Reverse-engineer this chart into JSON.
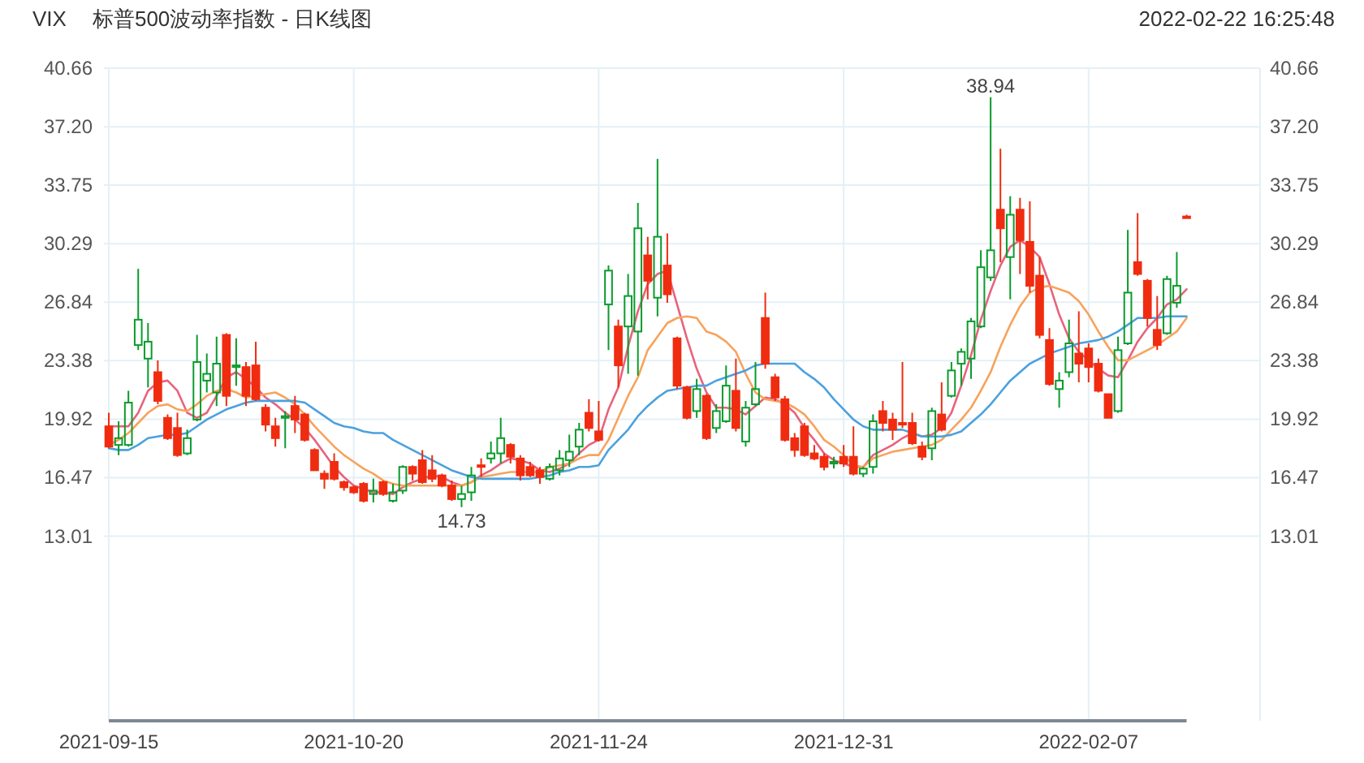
{
  "chart_data": {
    "type": "candlestick",
    "title": "VIX",
    "subtitle": "标普500波动率指数 - 日K线图",
    "annotations": [
      "2022-02-22 16:25:48",
      {
        "text": "38.94",
        "y": 38.94
      },
      {
        "text": "14.73",
        "y": 14.73
      }
    ],
    "categories": [
      "2021-09-15",
      null,
      null,
      null,
      null,
      null,
      null,
      null,
      null,
      null,
      null,
      null,
      null,
      null,
      null,
      null,
      null,
      null,
      null,
      null,
      null,
      null,
      null,
      null,
      null,
      "2021-10-20",
      null,
      null,
      null,
      null,
      null,
      null,
      null,
      null,
      null,
      null,
      null,
      null,
      null,
      null,
      null,
      null,
      null,
      null,
      null,
      null,
      null,
      null,
      null,
      null,
      "2021-11-24",
      null,
      null,
      null,
      null,
      null,
      null,
      null,
      null,
      null,
      null,
      null,
      null,
      null,
      null,
      null,
      null,
      null,
      null,
      null,
      null,
      null,
      null,
      null,
      null,
      "2021-12-31",
      null,
      null,
      null,
      null,
      null,
      null,
      null,
      null,
      null,
      null,
      null,
      null,
      null,
      null,
      null,
      null,
      null,
      null,
      null,
      null,
      null,
      null,
      null,
      null,
      "2022-02-07",
      null,
      null,
      null,
      null,
      null,
      null,
      null,
      null,
      null,
      null
    ],
    "ohlc": [
      [
        19.5,
        20.3,
        18.2,
        18.3
      ],
      [
        18.4,
        19.8,
        17.8,
        18.8
      ],
      [
        18.4,
        21.6,
        18.3,
        20.9
      ],
      [
        24.3,
        28.8,
        24.0,
        25.8
      ],
      [
        23.5,
        25.6,
        21.8,
        24.5
      ],
      [
        22.7,
        23.4,
        20.8,
        21.0
      ],
      [
        20.0,
        20.2,
        18.7,
        18.8
      ],
      [
        19.4,
        20.3,
        17.7,
        17.8
      ],
      [
        17.9,
        19.3,
        17.8,
        18.8
      ],
      [
        19.9,
        24.9,
        19.8,
        23.3
      ],
      [
        22.2,
        23.8,
        21.5,
        22.6
      ],
      [
        21.5,
        24.8,
        20.7,
        23.2
      ],
      [
        24.9,
        25.0,
        20.7,
        21.3
      ],
      [
        23.0,
        24.7,
        21.9,
        23.1
      ],
      [
        23.0,
        23.3,
        20.7,
        21.3
      ],
      [
        23.1,
        24.5,
        21.0,
        21.1
      ],
      [
        20.6,
        20.8,
        19.2,
        19.6
      ],
      [
        19.5,
        20.0,
        18.3,
        18.8
      ],
      [
        20.0,
        20.4,
        18.2,
        20.1
      ],
      [
        20.7,
        21.3,
        19.1,
        19.9
      ],
      [
        20.2,
        20.3,
        18.6,
        18.7
      ],
      [
        18.1,
        18.2,
        16.9,
        16.9
      ],
      [
        16.7,
        16.9,
        15.8,
        16.4
      ],
      [
        17.4,
        17.9,
        16.3,
        16.4
      ],
      [
        16.2,
        16.3,
        15.7,
        15.9
      ],
      [
        15.9,
        16.0,
        15.5,
        15.6
      ],
      [
        16.1,
        16.2,
        15.0,
        15.1
      ],
      [
        15.5,
        16.4,
        15.0,
        15.7
      ],
      [
        16.2,
        16.3,
        15.4,
        15.5
      ],
      [
        15.1,
        16.1,
        15.0,
        15.6
      ],
      [
        15.7,
        17.2,
        15.5,
        17.1
      ],
      [
        17.1,
        17.2,
        16.3,
        16.7
      ],
      [
        17.5,
        18.1,
        16.1,
        16.2
      ],
      [
        16.9,
        17.8,
        16.2,
        16.4
      ],
      [
        16.6,
        16.7,
        15.9,
        16.0
      ],
      [
        16.0,
        16.3,
        15.1,
        15.2
      ],
      [
        15.2,
        16.0,
        14.73,
        15.5
      ],
      [
        15.6,
        17.1,
        15.1,
        16.6
      ],
      [
        17.2,
        17.6,
        16.5,
        17.1
      ],
      [
        17.6,
        18.6,
        17.3,
        17.9
      ],
      [
        17.9,
        20.0,
        17.3,
        18.8
      ],
      [
        18.4,
        18.5,
        17.3,
        17.7
      ],
      [
        17.6,
        17.8,
        16.3,
        16.6
      ],
      [
        17.1,
        17.4,
        16.5,
        16.6
      ],
      [
        16.9,
        17.1,
        16.1,
        16.5
      ],
      [
        16.4,
        17.3,
        16.3,
        17.1
      ],
      [
        16.9,
        18.1,
        16.6,
        17.6
      ],
      [
        17.5,
        19.0,
        17.1,
        18.0
      ],
      [
        18.3,
        19.7,
        17.8,
        19.3
      ],
      [
        20.3,
        21.1,
        19.2,
        19.4
      ],
      [
        19.2,
        21.0,
        18.6,
        18.7
      ],
      [
        26.7,
        29.0,
        24.0,
        28.7
      ],
      [
        25.4,
        25.8,
        21.8,
        23.1
      ],
      [
        25.4,
        28.5,
        22.6,
        27.2
      ],
      [
        25.1,
        32.7,
        22.5,
        31.2
      ],
      [
        29.6,
        30.7,
        27.0,
        28.1
      ],
      [
        27.1,
        35.3,
        26.0,
        30.7
      ],
      [
        29.0,
        30.9,
        26.8,
        27.3
      ],
      [
        24.7,
        24.8,
        21.7,
        21.9
      ],
      [
        21.8,
        21.9,
        19.9,
        20.0
      ],
      [
        20.4,
        22.3,
        20.0,
        21.7
      ],
      [
        21.3,
        21.4,
        18.7,
        18.8
      ],
      [
        19.4,
        20.8,
        19.1,
        20.4
      ],
      [
        19.8,
        23.1,
        19.7,
        21.9
      ],
      [
        21.6,
        23.5,
        19.2,
        19.4
      ],
      [
        18.6,
        21.0,
        18.3,
        20.6
      ],
      [
        20.8,
        23.3,
        20.7,
        21.7
      ],
      [
        25.9,
        27.4,
        22.9,
        23.2
      ],
      [
        22.4,
        22.6,
        21.0,
        21.2
      ],
      [
        21.1,
        21.3,
        18.6,
        18.7
      ],
      [
        18.8,
        19.1,
        17.7,
        18.1
      ],
      [
        19.5,
        19.7,
        17.7,
        17.8
      ],
      [
        17.9,
        18.4,
        17.5,
        17.6
      ],
      [
        17.7,
        17.9,
        16.9,
        17.1
      ],
      [
        17.3,
        17.7,
        17.0,
        17.4
      ],
      [
        17.7,
        18.4,
        17.1,
        17.3
      ],
      [
        17.7,
        19.5,
        16.6,
        16.7
      ],
      [
        16.7,
        17.1,
        16.5,
        17.0
      ],
      [
        17.1,
        20.2,
        16.7,
        19.8
      ],
      [
        20.4,
        21.0,
        19.2,
        19.7
      ],
      [
        19.9,
        20.3,
        18.7,
        19.3
      ],
      [
        19.7,
        23.3,
        19.4,
        19.6
      ],
      [
        19.7,
        20.3,
        18.4,
        18.5
      ],
      [
        18.3,
        18.6,
        17.5,
        17.7
      ],
      [
        18.2,
        20.6,
        17.5,
        20.4
      ],
      [
        20.2,
        22.1,
        19.2,
        19.3
      ],
      [
        21.3,
        23.3,
        21.2,
        22.8
      ],
      [
        23.2,
        24.1,
        21.9,
        23.9
      ],
      [
        23.5,
        25.9,
        22.3,
        25.7
      ],
      [
        25.4,
        29.9,
        25.3,
        28.9
      ],
      [
        28.3,
        38.94,
        28.1,
        29.9
      ],
      [
        32.3,
        35.9,
        29.2,
        31.2
      ],
      [
        29.5,
        33.1,
        27.0,
        32.0
      ],
      [
        32.3,
        33.0,
        28.5,
        30.5
      ],
      [
        30.4,
        32.8,
        27.4,
        27.8
      ],
      [
        28.4,
        29.5,
        24.7,
        24.9
      ],
      [
        24.6,
        25.3,
        21.9,
        22.0
      ],
      [
        21.7,
        22.7,
        20.6,
        22.2
      ],
      [
        22.7,
        25.8,
        22.4,
        24.4
      ],
      [
        23.8,
        26.3,
        22.1,
        23.2
      ],
      [
        24.1,
        24.4,
        22.1,
        23.0
      ],
      [
        23.2,
        23.5,
        21.5,
        21.6
      ],
      [
        21.4,
        21.4,
        20.0,
        20.0
      ],
      [
        20.4,
        24.8,
        20.3,
        24.0
      ],
      [
        24.4,
        31.1,
        24.3,
        27.4
      ],
      [
        29.2,
        32.1,
        28.4,
        28.5
      ],
      [
        28.1,
        28.2,
        25.4,
        25.9
      ],
      [
        25.2,
        27.2,
        24.0,
        24.3
      ],
      [
        25.0,
        28.4,
        24.9,
        28.2
      ],
      [
        26.8,
        29.8,
        26.5,
        27.8
      ],
      [
        31.9,
        32.0,
        31.8,
        31.8
      ]
    ],
    "colors": [
      "#f02c10",
      "#0a9b2c",
      "#0a9b2c",
      "#0a9b2c",
      "#0a9b2c",
      "#f02c10",
      "#f02c10",
      "#f02c10",
      "#0a9b2c",
      "#0a9b2c",
      "#0a9b2c",
      "#0a9b2c",
      "#f02c10",
      "#0a9b2c",
      "#f02c10",
      "#f02c10",
      "#f02c10",
      "#f02c10",
      "#0a9b2c",
      "#f02c10",
      "#f02c10",
      "#f02c10",
      "#f02c10",
      "#f02c10",
      "#f02c10",
      "#f02c10",
      "#f02c10",
      "#0a9b2c",
      "#f02c10",
      "#0a9b2c",
      "#0a9b2c",
      "#f02c10",
      "#f02c10",
      "#f02c10",
      "#f02c10",
      "#f02c10",
      "#0a9b2c",
      "#0a9b2c",
      "#f02c10",
      "#0a9b2c",
      "#0a9b2c",
      "#f02c10",
      "#f02c10",
      "#f02c10",
      "#f02c10",
      "#0a9b2c",
      "#0a9b2c",
      "#0a9b2c",
      "#0a9b2c",
      "#f02c10",
      "#f02c10",
      "#0a9b2c",
      "#f02c10",
      "#0a9b2c",
      "#0a9b2c",
      "#f02c10",
      "#0a9b2c",
      "#f02c10",
      "#f02c10",
      "#f02c10",
      "#0a9b2c",
      "#f02c10",
      "#0a9b2c",
      "#0a9b2c",
      "#f02c10",
      "#0a9b2c",
      "#0a9b2c",
      "#f02c10",
      "#f02c10",
      "#f02c10",
      "#f02c10",
      "#f02c10",
      "#f02c10",
      "#f02c10",
      "#0a9b2c",
      "#f02c10",
      "#f02c10",
      "#0a9b2c",
      "#0a9b2c",
      "#f02c10",
      "#f02c10",
      "#f02c10",
      "#f02c10",
      "#f02c10",
      "#0a9b2c",
      "#f02c10",
      "#0a9b2c",
      "#0a9b2c",
      "#0a9b2c",
      "#0a9b2c",
      "#0a9b2c",
      "#f02c10",
      "#0a9b2c",
      "#f02c10",
      "#f02c10",
      "#f02c10",
      "#f02c10",
      "#0a9b2c",
      "#0a9b2c",
      "#f02c10",
      "#f02c10",
      "#f02c10",
      "#f02c10",
      "#0a9b2c",
      "#0a9b2c",
      "#f02c10",
      "#f02c10",
      "#f02c10",
      "#0a9b2c",
      "#0a9b2c",
      "#f02c10"
    ],
    "series": [
      {
        "type": "line",
        "color": "#e8637c",
        "values": [
          19.5,
          19.5,
          19.5,
          20.3,
          21.6,
          22.1,
          22.2,
          21.6,
          20.3,
          20.0,
          20.3,
          21.3,
          22.4,
          22.7,
          22.3,
          21.8,
          21.2,
          20.8,
          20.3,
          19.9,
          19.4,
          18.7,
          17.9,
          17.1,
          16.5,
          16.0,
          15.8,
          15.6,
          15.6,
          15.5,
          15.9,
          16.2,
          16.4,
          16.6,
          16.5,
          16.2,
          16.0,
          16.2,
          16.6,
          16.9,
          17.3,
          17.6,
          17.5,
          17.3,
          16.9,
          16.8,
          17.0,
          17.3,
          17.9,
          18.4,
          18.7,
          20.5,
          21.8,
          24.2,
          26.3,
          27.9,
          28.5,
          28.7,
          26.7,
          24.7,
          22.9,
          21.5,
          20.6,
          20.6,
          20.5,
          20.2,
          20.7,
          21.2,
          21.1,
          20.8,
          20.3,
          19.4,
          18.7,
          17.9,
          17.5,
          17.3,
          17.1,
          17.1,
          17.8,
          18.1,
          18.4,
          18.8,
          19.1,
          18.9,
          19.0,
          19.4,
          20.3,
          21.9,
          23.7,
          25.8,
          27.5,
          29.0,
          30.1,
          30.5,
          30.1,
          29.5,
          27.9,
          26.1,
          24.7,
          23.9,
          23.4,
          22.9,
          22.5,
          22.4,
          23.4,
          24.5,
          25.3,
          25.9,
          26.7,
          27.0,
          27.6
        ]
      },
      {
        "type": "line",
        "color": "#f7a35c",
        "values": [
          18.4,
          18.7,
          19.1,
          19.7,
          20.3,
          20.7,
          20.8,
          20.5,
          20.4,
          20.8,
          21.3,
          21.6,
          21.7,
          21.5,
          21.2,
          21.3,
          21.4,
          21.5,
          21.2,
          20.8,
          20.2,
          19.5,
          18.9,
          18.3,
          17.8,
          17.4,
          17.0,
          16.7,
          16.3,
          16.1,
          16.0,
          16.0,
          16.0,
          16.0,
          16.0,
          16.0,
          16.0,
          16.2,
          16.5,
          16.6,
          16.7,
          16.8,
          16.8,
          16.8,
          16.8,
          17.1,
          17.2,
          17.3,
          17.6,
          17.8,
          17.8,
          18.7,
          20.0,
          21.3,
          22.4,
          24.0,
          24.8,
          25.6,
          25.9,
          26.0,
          25.9,
          25.1,
          24.9,
          24.5,
          23.9,
          22.6,
          21.5,
          21.1,
          21.0,
          20.9,
          20.6,
          20.2,
          19.5,
          18.7,
          18.3,
          17.8,
          17.2,
          17.1,
          17.6,
          17.8,
          18.0,
          18.1,
          18.2,
          18.3,
          18.4,
          18.7,
          19.3,
          19.9,
          20.6,
          21.6,
          22.7,
          24.2,
          25.5,
          26.6,
          27.4,
          27.7,
          27.8,
          27.6,
          27.4,
          26.9,
          26.1,
          25.1,
          24.2,
          23.4,
          23.4,
          23.7,
          24.0,
          24.3,
          24.7,
          25.1,
          25.9
        ]
      },
      {
        "type": "line",
        "color": "#4ba1de",
        "values": [
          18.2,
          18.1,
          18.1,
          18.4,
          18.8,
          18.9,
          19.0,
          19.0,
          19.1,
          19.5,
          19.9,
          20.2,
          20.5,
          20.7,
          20.9,
          21.0,
          21.0,
          21.0,
          21.0,
          21.0,
          20.9,
          20.5,
          20.1,
          19.7,
          19.5,
          19.4,
          19.2,
          19.1,
          19.1,
          18.7,
          18.4,
          18.1,
          17.8,
          17.5,
          17.2,
          16.9,
          16.7,
          16.5,
          16.4,
          16.4,
          16.4,
          16.4,
          16.4,
          16.4,
          16.5,
          16.6,
          16.8,
          16.9,
          17.1,
          17.1,
          17.2,
          18.1,
          18.7,
          19.3,
          20.1,
          20.7,
          21.2,
          21.6,
          21.7,
          21.8,
          21.9,
          21.9,
          22.2,
          22.4,
          22.6,
          22.8,
          23.1,
          23.2,
          23.2,
          23.2,
          23.2,
          22.7,
          22.3,
          21.8,
          21.1,
          20.5,
          19.9,
          19.5,
          19.3,
          19.3,
          19.3,
          19.3,
          19.1,
          18.9,
          18.9,
          18.9,
          19.0,
          19.2,
          19.7,
          20.2,
          20.8,
          21.5,
          22.2,
          22.7,
          23.2,
          23.5,
          23.8,
          24.0,
          24.2,
          24.4,
          24.5,
          24.6,
          24.8,
          25.1,
          25.5,
          25.9,
          25.9,
          25.9,
          26.0,
          26.0,
          26.0
        ]
      }
    ],
    "ylim": [
      2.1,
      40.66
    ],
    "yticks": [
      13.01,
      16.47,
      19.92,
      23.38,
      26.84,
      30.29,
      33.75,
      {
        "value": 37.2,
        "label": "37.20"
      },
      40.66
    ],
    "y2lim": [
      2.1,
      40.66
    ],
    "y2ticks": [
      13.01,
      16.47,
      19.92,
      23.38,
      26.84,
      30.29,
      33.75,
      {
        "value": 37.2,
        "label": "37.20"
      },
      40.66
    ],
    "grid": true
  }
}
